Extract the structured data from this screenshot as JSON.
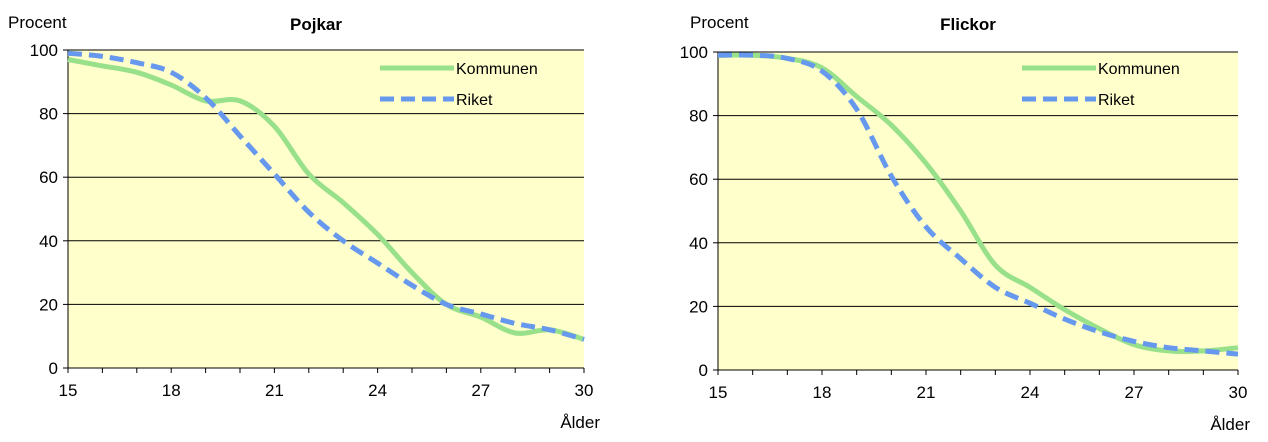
{
  "chart_data": [
    {
      "type": "line",
      "title": "Pojkar",
      "ylabel": "Procent",
      "xlabel": "Ålder",
      "xlim": [
        15,
        30
      ],
      "ylim": [
        0,
        100
      ],
      "x_ticks": [
        15,
        18,
        21,
        24,
        27,
        30
      ],
      "y_ticks": [
        0,
        20,
        40,
        60,
        80,
        100
      ],
      "plot_background": "#FFFFCC",
      "grid": "horizontal",
      "legend_position": "top-right",
      "series": [
        {
          "name": "Kommunen",
          "color": "#99E08A",
          "style": "solid",
          "x": [
            15,
            16,
            17,
            18,
            19,
            20,
            21,
            22,
            23,
            24,
            25,
            26,
            27,
            28,
            29,
            30
          ],
          "y": [
            97,
            95,
            93,
            89,
            84,
            84,
            76,
            61,
            52,
            42,
            30,
            20,
            16,
            11,
            12,
            9
          ]
        },
        {
          "name": "Riket",
          "color": "#6699EE",
          "style": "dashed",
          "x": [
            15,
            16,
            17,
            18,
            19,
            20,
            21,
            22,
            23,
            24,
            25,
            26,
            27,
            28,
            29,
            30
          ],
          "y": [
            99,
            98,
            96,
            93,
            85,
            73,
            61,
            49,
            40,
            33,
            26,
            20,
            17,
            14,
            12,
            9
          ]
        }
      ]
    },
    {
      "type": "line",
      "title": "Flickor",
      "ylabel": "Procent",
      "xlabel": "Ålder",
      "xlim": [
        15,
        30
      ],
      "ylim": [
        0,
        100
      ],
      "x_ticks": [
        15,
        18,
        21,
        24,
        27,
        30
      ],
      "y_ticks": [
        0,
        20,
        40,
        60,
        80,
        100
      ],
      "plot_background": "#FFFFCC",
      "grid": "horizontal",
      "legend_position": "top-right",
      "series": [
        {
          "name": "Kommunen",
          "color": "#99E08A",
          "style": "solid",
          "x": [
            15,
            16,
            17,
            18,
            19,
            20,
            21,
            22,
            23,
            24,
            25,
            26,
            27,
            28,
            29,
            30
          ],
          "y": [
            99,
            99,
            98,
            95,
            86,
            77,
            65,
            50,
            33,
            26,
            19,
            13,
            8,
            6,
            6,
            7
          ]
        },
        {
          "name": "Riket",
          "color": "#6699EE",
          "style": "dashed",
          "x": [
            15,
            16,
            17,
            18,
            19,
            20,
            21,
            22,
            23,
            24,
            25,
            26,
            27,
            28,
            29,
            30
          ],
          "y": [
            99,
            99,
            98,
            94,
            82,
            61,
            45,
            35,
            26,
            21,
            16,
            12,
            9,
            7,
            6,
            5
          ]
        }
      ]
    }
  ]
}
